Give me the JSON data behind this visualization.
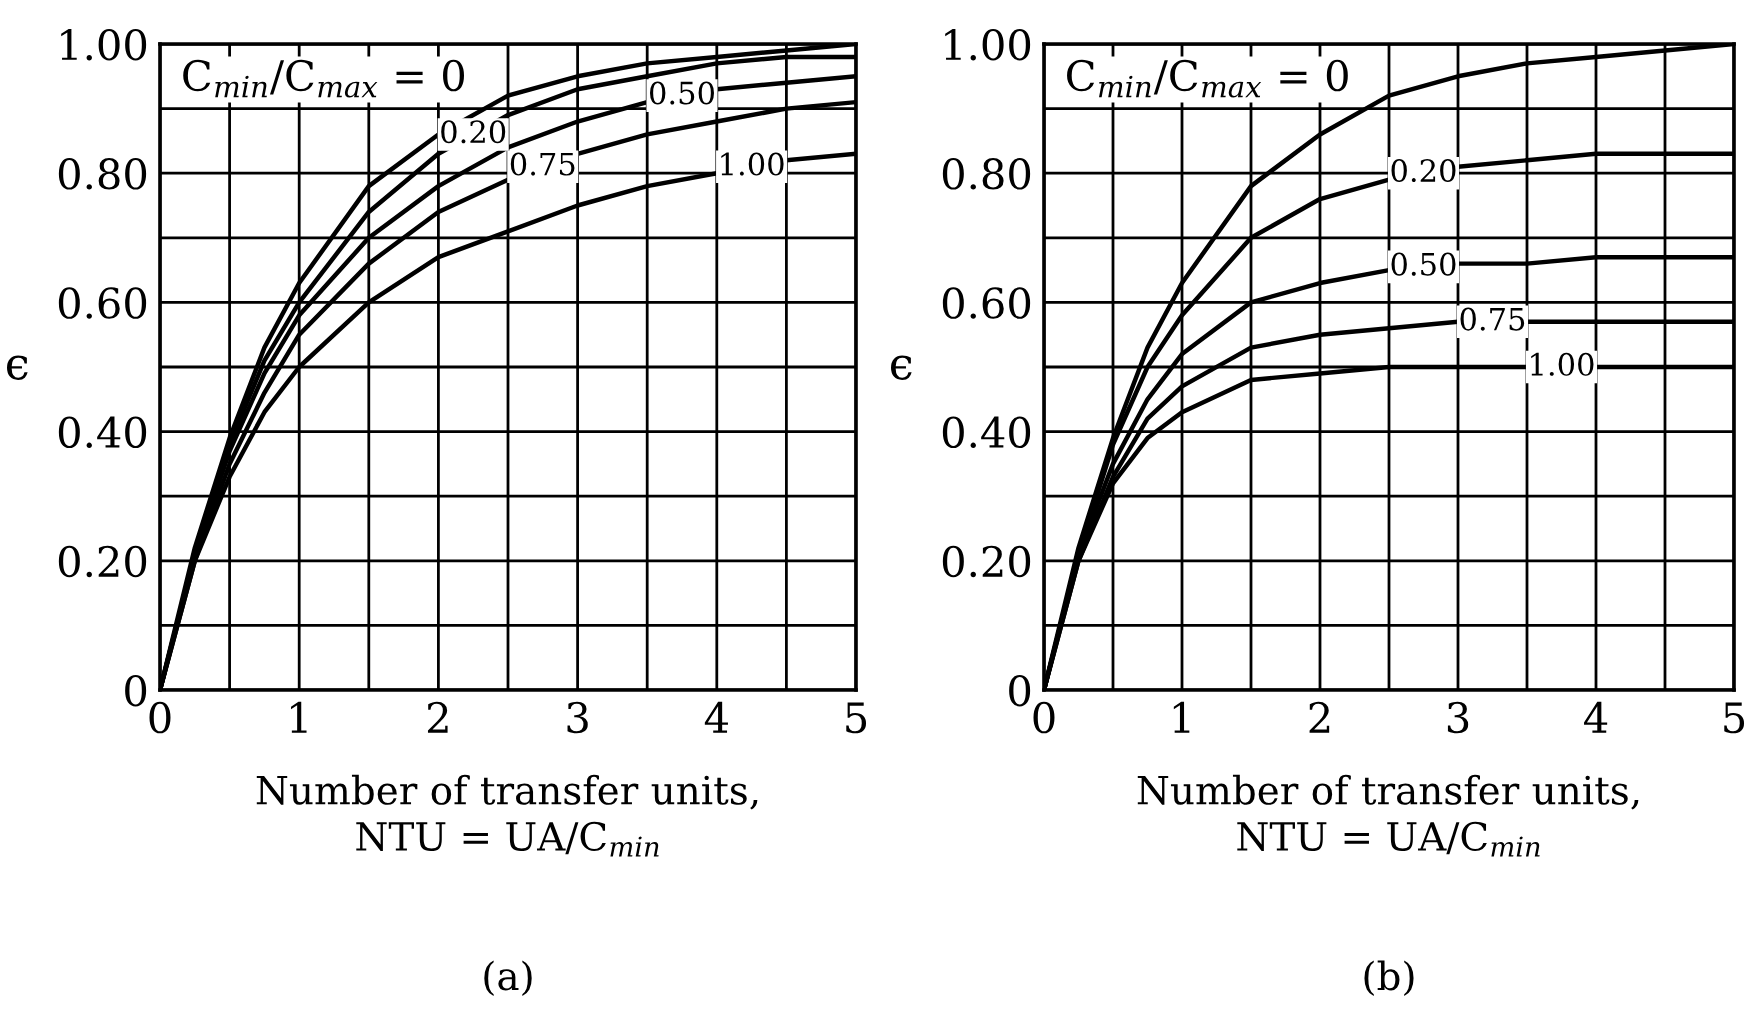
{
  "chart_data": [
    {
      "type": "line",
      "xlabel": "Number of transfer units,\nNTU = UA/C$_{min}$",
      "ylabel": "ϵ",
      "annotations": [
        "(a)"
      ],
      "x": [
        0,
        0.25,
        0.5,
        0.75,
        1,
        1.5,
        2,
        2.5,
        3,
        3.5,
        4,
        4.5,
        5
      ],
      "series": [
        {
          "name": "C$_{min}$/C$_{max}$ = 0",
          "color": "#000000",
          "values": [
            0,
            0.22,
            0.39,
            0.53,
            0.63,
            0.78,
            0.86,
            0.92,
            0.95,
            0.97,
            0.98,
            0.99,
            1.0
          ]
        },
        {
          "name": "0.20",
          "color": "#000000",
          "values": [
            0,
            0.21,
            0.38,
            0.51,
            0.6,
            0.74,
            0.83,
            0.89,
            0.93,
            0.95,
            0.97,
            0.98,
            0.98
          ]
        },
        {
          "name": "0.50",
          "color": "#000000",
          "values": [
            0,
            0.21,
            0.37,
            0.49,
            0.58,
            0.7,
            0.78,
            0.84,
            0.88,
            0.91,
            0.93,
            0.94,
            0.95
          ]
        },
        {
          "name": "0.75",
          "color": "#000000",
          "values": [
            0,
            0.2,
            0.35,
            0.46,
            0.55,
            0.66,
            0.74,
            0.79,
            0.83,
            0.86,
            0.88,
            0.9,
            0.91
          ]
        },
        {
          "name": "1.00",
          "color": "#000000",
          "values": [
            0,
            0.2,
            0.33,
            0.43,
            0.5,
            0.6,
            0.67,
            0.71,
            0.75,
            0.78,
            0.8,
            0.82,
            0.83
          ]
        }
      ],
      "xlim": [
        0,
        5
      ],
      "ylim": [
        0,
        1.0
      ],
      "xticks": [
        0,
        {
          "value": 0.5,
          "label": null
        },
        1,
        {
          "value": 1.5,
          "label": null
        },
        2,
        {
          "value": 2.5,
          "label": null
        },
        3,
        {
          "value": 3.5,
          "label": null
        },
        4,
        {
          "value": 4.5,
          "label": null
        },
        5
      ],
      "yticks": [
        0,
        {
          "value": 0.1,
          "label": null
        },
        {
          "value": 0.2,
          "label": "0.20"
        },
        {
          "value": 0.3,
          "label": null
        },
        {
          "value": 0.4,
          "label": "0.40"
        },
        {
          "value": 0.5,
          "label": null
        },
        {
          "value": 0.6,
          "label": "0.60"
        },
        {
          "value": 0.7,
          "label": null
        },
        {
          "value": 0.8,
          "label": "0.80"
        },
        {
          "value": 0.9,
          "label": null
        },
        {
          "value": 1.0,
          "label": "1.00"
        }
      ],
      "grid": true,
      "legend": false
    },
    {
      "type": "line",
      "xlabel": "Number of transfer units,\nNTU = UA/C$_{min}$",
      "ylabel": "ϵ",
      "annotations": [
        "(b)"
      ],
      "x": [
        0,
        0.25,
        0.5,
        0.75,
        1,
        1.5,
        2,
        2.5,
        3,
        3.5,
        4,
        4.5,
        5
      ],
      "series": [
        {
          "name": "C$_{min}$/C$_{max}$ = 0",
          "color": "#000000",
          "values": [
            0,
            0.22,
            0.39,
            0.53,
            0.63,
            0.78,
            0.86,
            0.92,
            0.95,
            0.97,
            0.98,
            0.99,
            1.0
          ]
        },
        {
          "name": "0.20",
          "color": "#000000",
          "values": [
            0,
            0.21,
            0.38,
            0.5,
            0.58,
            0.7,
            0.76,
            0.79,
            0.81,
            0.82,
            0.83,
            0.83,
            0.83
          ]
        },
        {
          "name": "0.50",
          "color": "#000000",
          "values": [
            0,
            0.21,
            0.35,
            0.45,
            0.52,
            0.6,
            0.63,
            0.65,
            0.66,
            0.66,
            0.67,
            0.67,
            0.67
          ]
        },
        {
          "name": "0.75",
          "color": "#000000",
          "values": [
            0,
            0.2,
            0.33,
            0.42,
            0.47,
            0.53,
            0.55,
            0.56,
            0.57,
            0.57,
            0.57,
            0.57,
            0.57
          ]
        },
        {
          "name": "1.00",
          "color": "#000000",
          "values": [
            0,
            0.2,
            0.32,
            0.39,
            0.43,
            0.48,
            0.49,
            0.5,
            0.5,
            0.5,
            0.5,
            0.5,
            0.5
          ]
        }
      ],
      "xlim": [
        0,
        5
      ],
      "ylim": [
        0,
        1.0
      ],
      "xticks": [
        0,
        {
          "value": 0.5,
          "label": null
        },
        1,
        {
          "value": 1.5,
          "label": null
        },
        2,
        {
          "value": 2.5,
          "label": null
        },
        3,
        {
          "value": 3.5,
          "label": null
        },
        4,
        {
          "value": 4.5,
          "label": null
        },
        5
      ],
      "yticks": [
        0,
        {
          "value": 0.1,
          "label": null
        },
        {
          "value": 0.2,
          "label": "0.20"
        },
        {
          "value": 0.3,
          "label": null
        },
        {
          "value": 0.4,
          "label": "0.40"
        },
        {
          "value": 0.5,
          "label": null
        },
        {
          "value": 0.6,
          "label": "0.60"
        },
        {
          "value": 0.7,
          "label": null
        },
        {
          "value": 0.8,
          "label": "0.80"
        },
        {
          "value": 0.9,
          "label": null
        },
        {
          "value": 1.0,
          "label": "1.00"
        }
      ],
      "grid": true,
      "legend": false
    }
  ]
}
